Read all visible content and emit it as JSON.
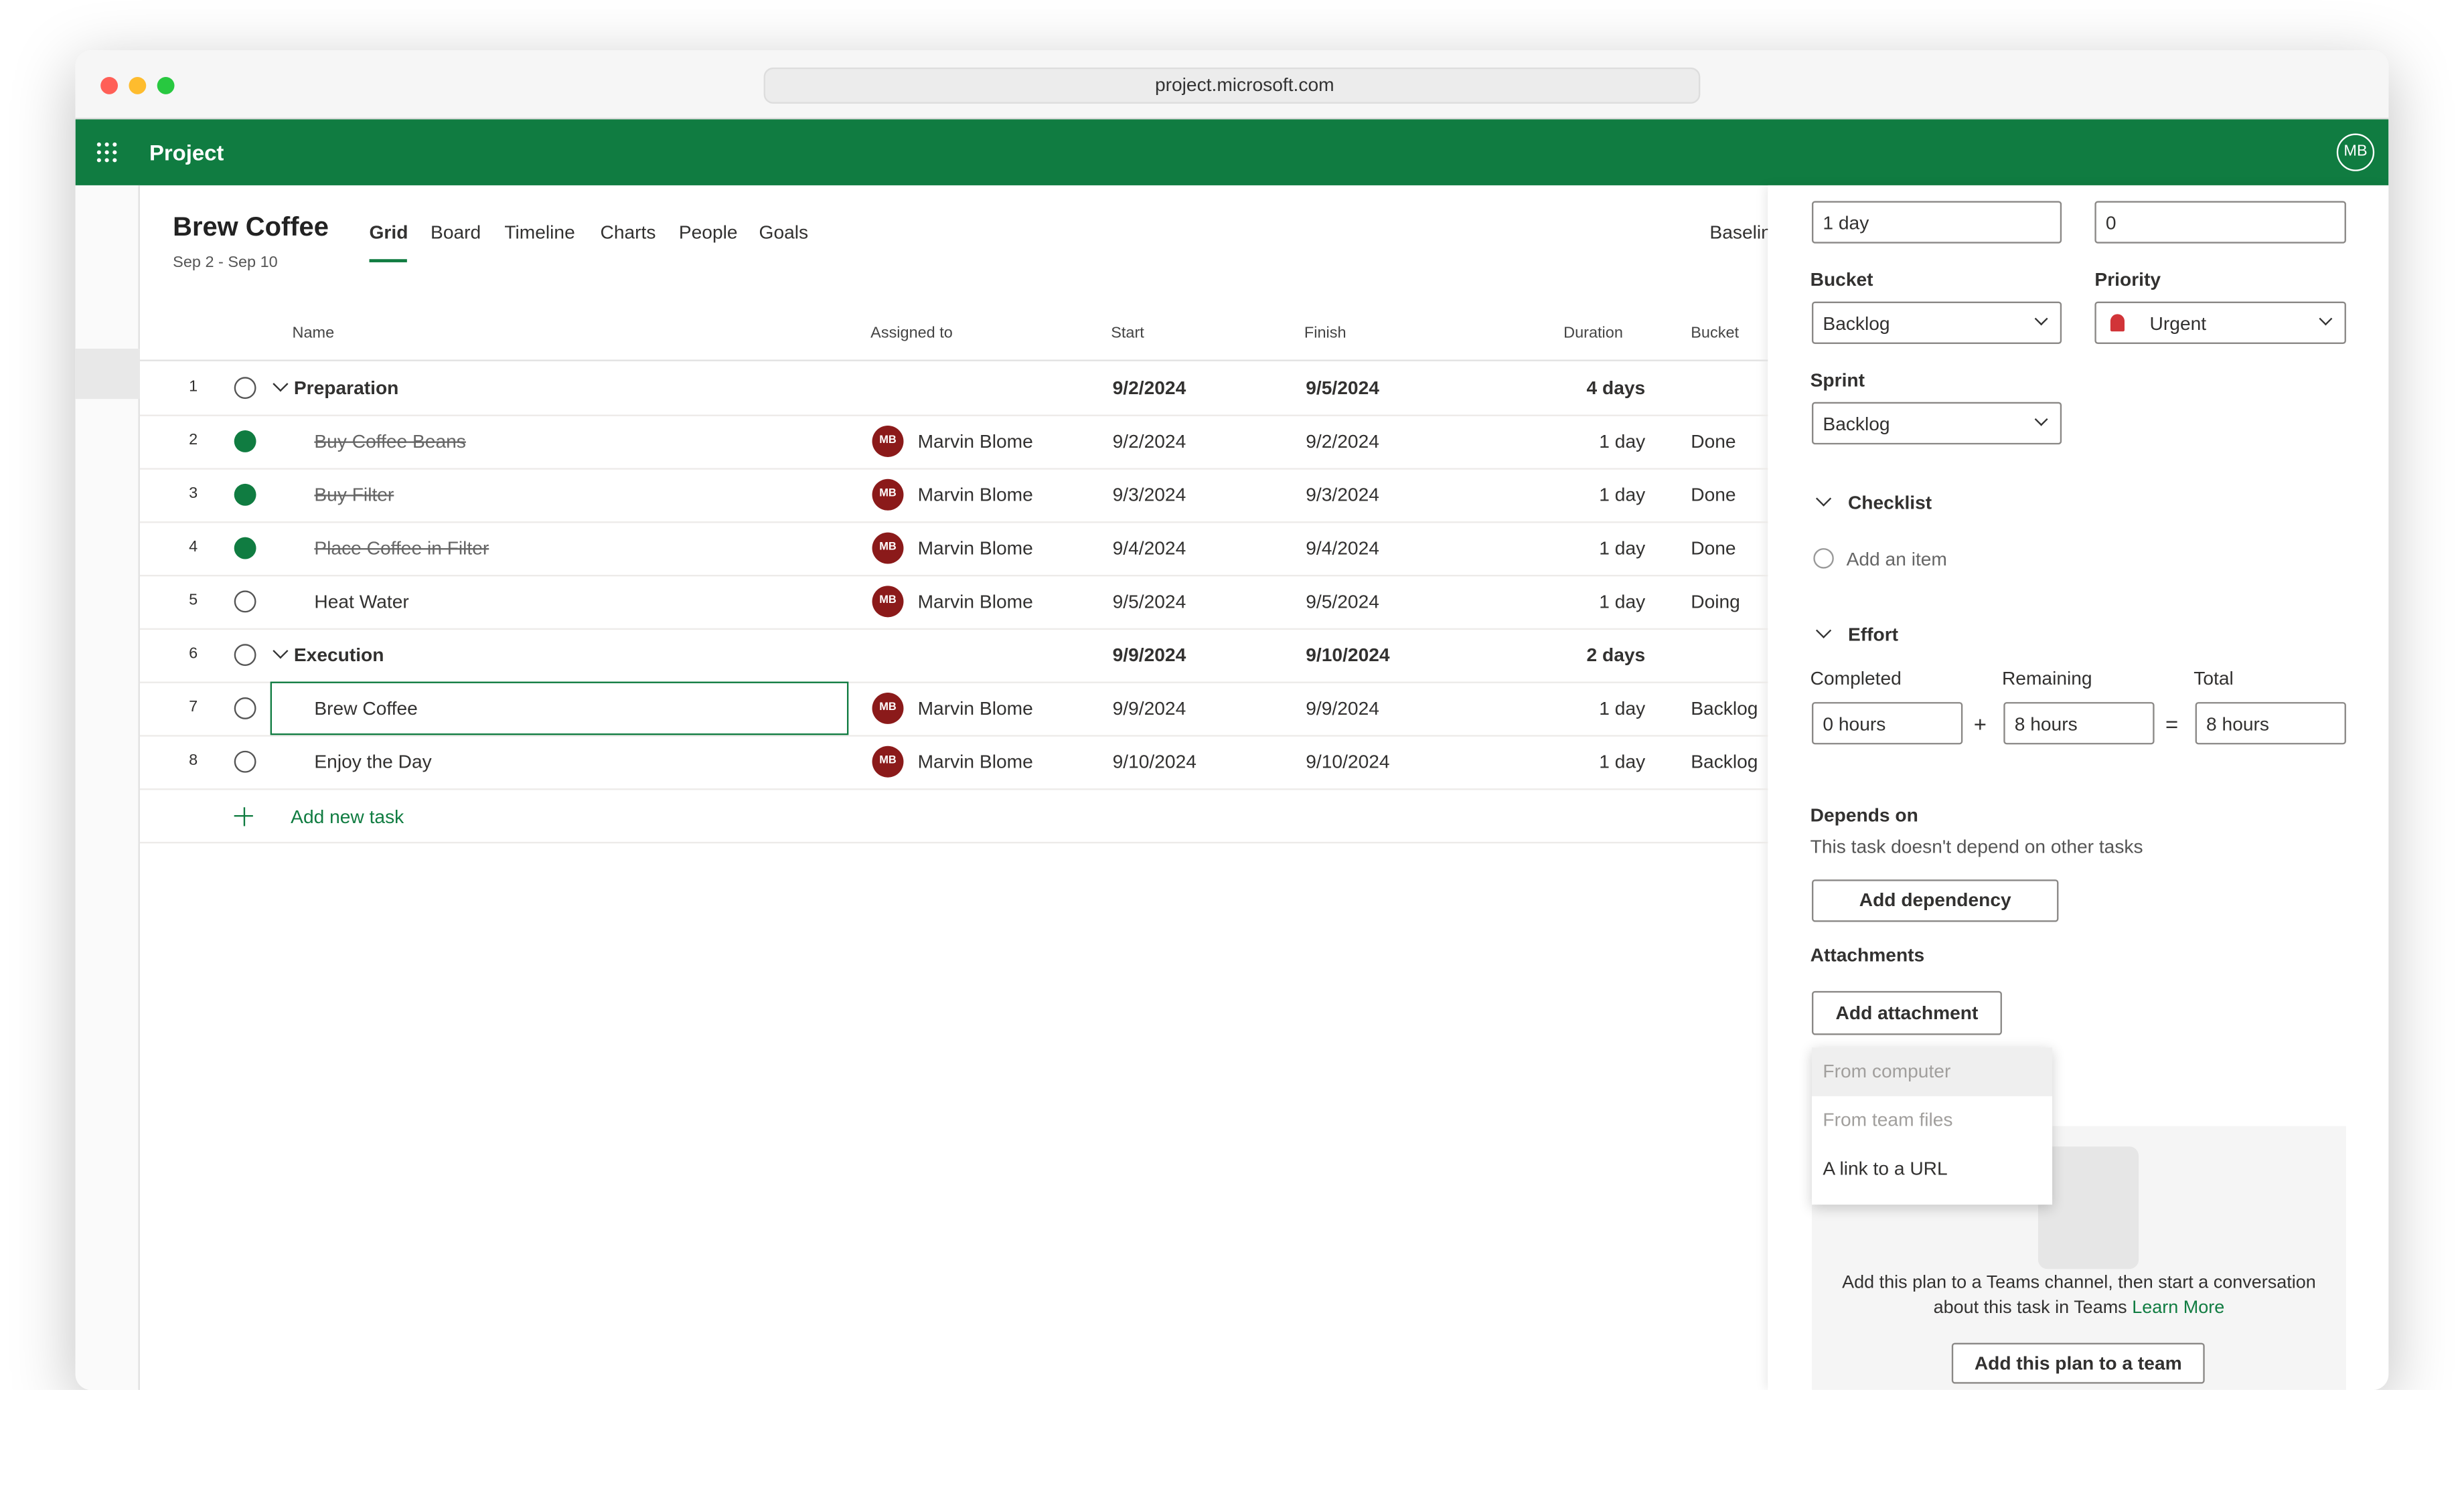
{
  "browser": {
    "url": "project.microsoft.com"
  },
  "app": {
    "name": "Project",
    "user_initials": "MB"
  },
  "plan": {
    "title": "Brew Coffee",
    "dates": "Sep 2 - Sep 10",
    "tabs": [
      "Grid",
      "Board",
      "Timeline",
      "Charts",
      "People",
      "Goals"
    ],
    "baseline": "Baselin"
  },
  "grid": {
    "columns": [
      "Name",
      "Assigned to",
      "Start",
      "Finish",
      "Duration",
      "Bucket"
    ],
    "rows": [
      {
        "number": 1,
        "name": "Preparation",
        "start": "9/2/2024",
        "finish": "9/5/2024",
        "duration": "4 days",
        "summary": true
      },
      {
        "number": 2,
        "name": "Buy Coffee Beans",
        "assignee_initials": "MB",
        "assignee": "Marvin Blome",
        "start": "9/2/2024",
        "finish": "9/2/2024",
        "duration": "1 day",
        "bucket": "Done",
        "completed": true
      },
      {
        "number": 3,
        "name": "Buy Filter",
        "assignee_initials": "MB",
        "assignee": "Marvin Blome",
        "start": "9/3/2024",
        "finish": "9/3/2024",
        "duration": "1 day",
        "bucket": "Done",
        "completed": true
      },
      {
        "number": 4,
        "name": "Place Coffee in Filter",
        "assignee_initials": "MB",
        "assignee": "Marvin Blome",
        "start": "9/4/2024",
        "finish": "9/4/2024",
        "duration": "1 day",
        "bucket": "Done",
        "completed": true
      },
      {
        "number": 5,
        "name": "Heat Water",
        "assignee_initials": "MB",
        "assignee": "Marvin Blome",
        "start": "9/5/2024",
        "finish": "9/5/2024",
        "duration": "1 day",
        "bucket": "Doing"
      },
      {
        "number": 6,
        "name": "Execution",
        "start": "9/9/2024",
        "finish": "9/10/2024",
        "duration": "2 days",
        "summary": true
      },
      {
        "number": 7,
        "name": "Brew Coffee",
        "assignee_initials": "MB",
        "assignee": "Marvin Blome",
        "start": "9/9/2024",
        "finish": "9/9/2024",
        "duration": "1 day",
        "bucket": "Backlog",
        "selected": true
      },
      {
        "number": 8,
        "name": "Enjoy the Day",
        "assignee_initials": "MB",
        "assignee": "Marvin Blome",
        "start": "9/10/2024",
        "finish": "9/10/2024",
        "duration": "1 day",
        "bucket": "Backlog"
      }
    ],
    "add_task": "Add new task"
  },
  "panel": {
    "top_fields": [
      "1 day",
      "0"
    ],
    "bucket": {
      "label": "Bucket",
      "value": "Backlog"
    },
    "priority": {
      "label": "Priority",
      "value": "Urgent"
    },
    "sprint": {
      "label": "Sprint",
      "value": "Backlog"
    },
    "checklist": {
      "title": "Checklist",
      "placeholder": "Add an item"
    },
    "effort": {
      "title": "Effort",
      "completed": {
        "label": "Completed",
        "value": "0 hours"
      },
      "remaining": {
        "label": "Remaining",
        "value": "8 hours"
      },
      "total": {
        "label": "Total",
        "value": "8 hours"
      },
      "operators": [
        "+",
        "="
      ]
    },
    "depends_on": {
      "title": "Depends on",
      "text": "This task doesn't depend on other tasks",
      "button": "Add dependency"
    },
    "attachments": {
      "title": "Attachments",
      "button": "Add attachment",
      "menu": [
        "From computer",
        "From team files",
        "A link to a URL"
      ]
    },
    "teams": {
      "text": "Add this plan to a Teams channel, then start a conversation about this task in Teams",
      "link": "Learn More",
      "button": "Add this plan to a team"
    }
  }
}
